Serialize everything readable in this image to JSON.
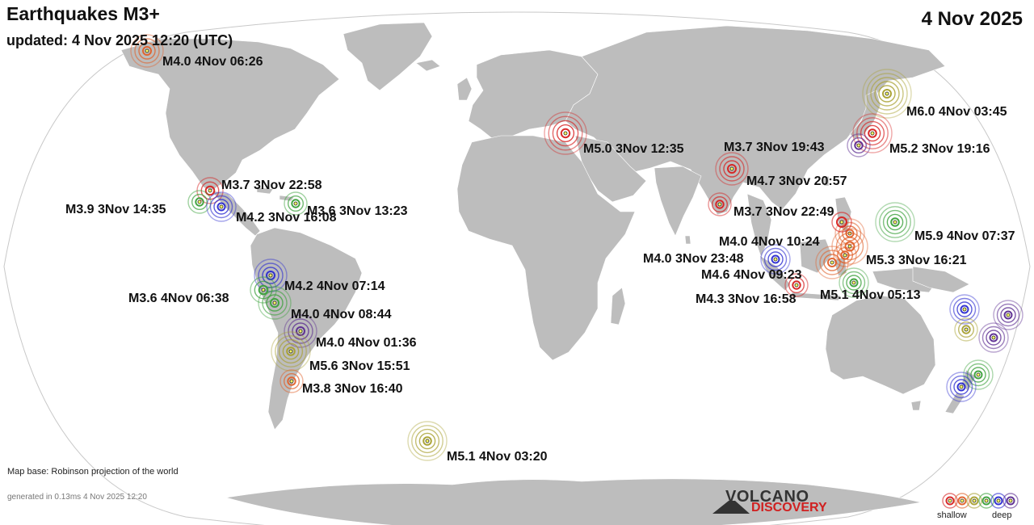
{
  "header": {
    "title": "Earthquakes M3+",
    "updated": "updated:  4 Nov 2025 12:20 (UTC)",
    "date": "4 Nov 2025"
  },
  "footer": {
    "basemap": "Map base: Robinson projection of the world",
    "generated": "generated in 0.13ms  4 Nov 2025 12:20"
  },
  "brand": {
    "line1": "VOLCANO",
    "line2": "DISCOVERY"
  },
  "legend": {
    "shallow": "shallow",
    "deep": "deep",
    "colors": [
      "#d62020",
      "#e0602a",
      "#a8a030",
      "#3aa03a",
      "#2a2ad0",
      "#5a2a90"
    ]
  },
  "colors": {
    "land": "#bdbdbd",
    "ocean": "#ffffff"
  },
  "quakes": [
    {
      "label": "M4.0  4Nov 06:26",
      "color": "#e0602a",
      "depth": "shallow"
    },
    {
      "label": "M6.0  4Nov 03:45",
      "color": "#a8a030",
      "depth": "intermediate"
    },
    {
      "label": "M5.2  3Nov 19:16",
      "color": "#d62020",
      "depth": "shallow"
    },
    {
      "label": "M3.7  3Nov 19:43",
      "color": "#5a2a90",
      "depth": "deep"
    },
    {
      "label": "M5.0  3Nov 12:35",
      "color": "#d62020",
      "depth": "shallow"
    },
    {
      "label": "M4.7  3Nov 20:57",
      "color": "#d62020",
      "depth": "shallow"
    },
    {
      "label": "M3.7  3Nov 22:49",
      "color": "#d62020",
      "depth": "shallow"
    },
    {
      "label": "M5.9  4Nov 07:37",
      "color": "#3aa03a",
      "depth": "intermediate"
    },
    {
      "label": "M4.0  4Nov 10:24",
      "color": "#e0602a",
      "depth": "shallow"
    },
    {
      "label": "M4.0  3Nov 23:48",
      "color": "#2a2ad0",
      "depth": "deep"
    },
    {
      "label": "M5.3  3Nov 16:21",
      "color": "#e0602a",
      "depth": "shallow"
    },
    {
      "label": "M4.6  4Nov 09:23",
      "color": "#e0602a",
      "depth": "shallow"
    },
    {
      "label": "M4.3  3Nov 16:58",
      "color": "#d62020",
      "depth": "shallow"
    },
    {
      "label": "M5.1  4Nov 05:13",
      "color": "#3aa03a",
      "depth": "intermediate"
    },
    {
      "label": "M3.7  3Nov 22:58",
      "color": "#d62020",
      "depth": "shallow"
    },
    {
      "label": "M3.9  3Nov 14:35",
      "color": "#3aa03a",
      "depth": "intermediate"
    },
    {
      "label": "M4.2  3Nov 16:08",
      "color": "#2a2ad0",
      "depth": "deep"
    },
    {
      "label": "M3.6  3Nov 13:23",
      "color": "#3aa03a",
      "depth": "intermediate"
    },
    {
      "label": "M4.2  4Nov 07:14",
      "color": "#2a2ad0",
      "depth": "deep"
    },
    {
      "label": "M3.6  4Nov 06:38",
      "color": "#3aa03a",
      "depth": "intermediate"
    },
    {
      "label": "M4.0  4Nov 08:44",
      "color": "#3aa03a",
      "depth": "intermediate"
    },
    {
      "label": "M4.0  4Nov 01:36",
      "color": "#5a2a90",
      "depth": "deep"
    },
    {
      "label": "M5.6  3Nov 15:51",
      "color": "#a8a030",
      "depth": "intermediate"
    },
    {
      "label": "M3.8  3Nov 16:40",
      "color": "#e0602a",
      "depth": "shallow"
    },
    {
      "label": "M5.1  4Nov 03:20",
      "color": "#a8a030",
      "depth": "intermediate"
    }
  ],
  "unlabeled_quakes": [
    {
      "color": "#2a2ad0"
    },
    {
      "color": "#5a2a90"
    },
    {
      "color": "#a8a030"
    },
    {
      "color": "#5a2a90"
    },
    {
      "color": "#3aa03a"
    },
    {
      "color": "#2a2ad0"
    },
    {
      "color": "#e0602a"
    },
    {
      "color": "#d62020"
    }
  ]
}
